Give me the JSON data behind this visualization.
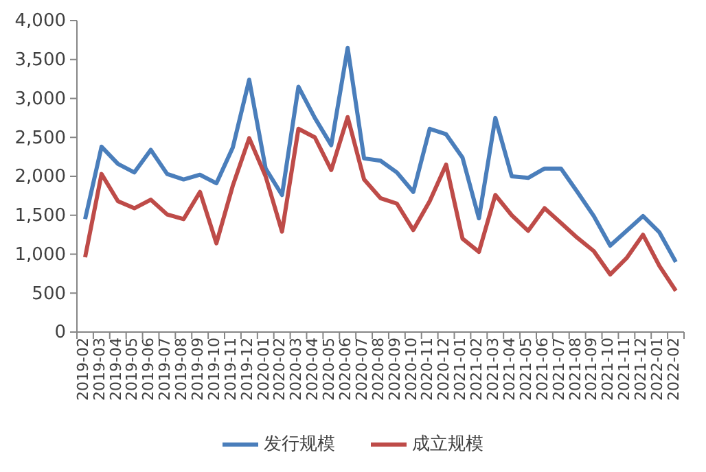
{
  "chart_data": {
    "type": "line",
    "categories": [
      "2019-02",
      "2019-03",
      "2019-04",
      "2019-05",
      "2019-06",
      "2019-07",
      "2019-08",
      "2019-09",
      "2019-10",
      "2019-11",
      "2019-12",
      "2020-01",
      "2020-02",
      "2020-03",
      "2020-04",
      "2020-05",
      "2020-06",
      "2020-07",
      "2020-08",
      "2020-09",
      "2020-10",
      "2020-11",
      "2020-12",
      "2021-01",
      "2021-02",
      "2021-03",
      "2021-04",
      "2021-05",
      "2021-06",
      "2021-07",
      "2021-08",
      "2021-09",
      "2021-10",
      "2021-11",
      "2021-12",
      "2022-01",
      "2022-02"
    ],
    "series": [
      {
        "name": "发行规模",
        "color": "#4a7ebb",
        "values": [
          1450,
          2380,
          2160,
          2050,
          2340,
          2030,
          1960,
          2020,
          1910,
          2370,
          3240,
          2100,
          1760,
          3150,
          2750,
          2400,
          3650,
          2230,
          2200,
          2050,
          1800,
          2610,
          2540,
          2240,
          1460,
          2750,
          2000,
          1980,
          2100,
          2100,
          1800,
          1490,
          1110,
          1300,
          1490,
          1280,
          900
        ]
      },
      {
        "name": "成立规模",
        "color": "#be4b48",
        "values": [
          960,
          2030,
          1680,
          1590,
          1700,
          1510,
          1450,
          1800,
          1140,
          1880,
          2490,
          2000,
          1290,
          2610,
          2500,
          2080,
          2760,
          1960,
          1720,
          1650,
          1310,
          1680,
          2150,
          1200,
          1030,
          1760,
          1500,
          1300,
          1590,
          1400,
          1210,
          1040,
          740,
          950,
          1250,
          850,
          530
        ]
      }
    ],
    "ylim": [
      0,
      4000
    ],
    "yticks": [
      {
        "value": 0,
        "label": "0"
      },
      {
        "value": 500,
        "label": "500"
      },
      {
        "value": 1000,
        "label": "1,000"
      },
      {
        "value": 1500,
        "label": "1,500"
      },
      {
        "value": 2000,
        "label": "2,000"
      },
      {
        "value": 2500,
        "label": "2,500"
      },
      {
        "value": 3000,
        "label": "3,000"
      },
      {
        "value": 3500,
        "label": "3,500"
      },
      {
        "value": 4000,
        "label": "4,000"
      }
    ],
    "grid": false,
    "legend": "bottom",
    "marker": "none",
    "line_style": "solid"
  }
}
